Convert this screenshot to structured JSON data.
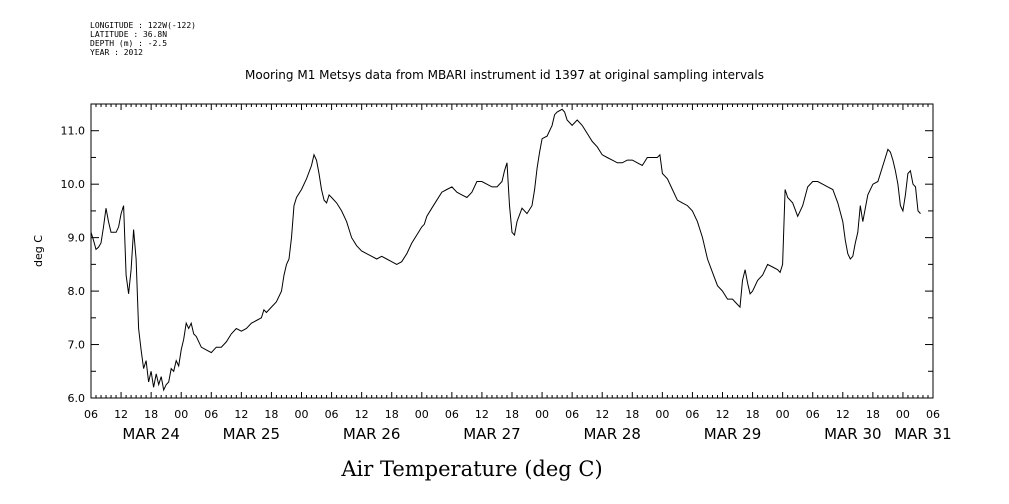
{
  "header": {
    "longitude": "LONGITUDE : 122W(-122)",
    "latitude": "LATITUDE : 36.8N",
    "depth": "DEPTH (m) : -2.5",
    "year": "YEAR : 2012"
  },
  "chart_data": {
    "type": "line",
    "title": "Mooring M1 Metsys data from MBARI instrument id 1397 at original sampling intervals",
    "xlabel": "Air Temperature (deg C)",
    "ylabel": "deg C",
    "ylim": [
      6.0,
      11.5
    ],
    "xlim_hours": [
      0,
      168
    ],
    "y_ticks": [
      "6.0",
      "7.0",
      "8.0",
      "9.0",
      "10.0",
      "11.0"
    ],
    "x_hour_ticks": [
      "06",
      "12",
      "18",
      "00",
      "06",
      "12",
      "18",
      "00",
      "06",
      "12",
      "18",
      "00",
      "06",
      "12",
      "18",
      "00",
      "06",
      "12",
      "18",
      "00",
      "06",
      "12",
      "18",
      "00",
      "06",
      "12",
      "18",
      "00",
      "06"
    ],
    "x_day_labels": [
      {
        "label": "MAR 24",
        "hour": 12
      },
      {
        "label": "MAR 25",
        "hour": 32
      },
      {
        "label": "MAR 26",
        "hour": 56
      },
      {
        "label": "MAR 27",
        "hour": 80
      },
      {
        "label": "MAR 28",
        "hour": 104
      },
      {
        "label": "MAR 29",
        "hour": 128
      },
      {
        "label": "MAR 30",
        "hour": 152
      },
      {
        "label": "MAR 31",
        "hour": 166
      }
    ],
    "series": [
      {
        "points": [
          [
            0,
            9.1
          ],
          [
            0.5,
            8.95
          ],
          [
            1,
            8.78
          ],
          [
            1.5,
            8.82
          ],
          [
            2,
            8.9
          ],
          [
            2.5,
            9.2
          ],
          [
            3,
            9.55
          ],
          [
            3.5,
            9.3
          ],
          [
            4,
            9.1
          ],
          [
            5,
            9.1
          ],
          [
            5.5,
            9.2
          ],
          [
            6,
            9.45
          ],
          [
            6.5,
            9.6
          ],
          [
            7,
            8.3
          ],
          [
            7.5,
            7.95
          ],
          [
            8,
            8.4
          ],
          [
            8.5,
            9.15
          ],
          [
            9,
            8.6
          ],
          [
            9.5,
            7.3
          ],
          [
            10,
            6.9
          ],
          [
            10.5,
            6.55
          ],
          [
            11,
            6.7
          ],
          [
            11.5,
            6.3
          ],
          [
            12,
            6.5
          ],
          [
            12.5,
            6.2
          ],
          [
            13,
            6.45
          ],
          [
            13.5,
            6.25
          ],
          [
            14,
            6.4
          ],
          [
            14.5,
            6.15
          ],
          [
            15,
            6.25
          ],
          [
            15.5,
            6.3
          ],
          [
            16,
            6.55
          ],
          [
            16.5,
            6.5
          ],
          [
            17,
            6.7
          ],
          [
            17.5,
            6.6
          ],
          [
            18,
            6.9
          ],
          [
            18.5,
            7.1
          ],
          [
            19,
            7.4
          ],
          [
            19.5,
            7.3
          ],
          [
            20,
            7.4
          ],
          [
            20.5,
            7.2
          ],
          [
            21,
            7.15
          ],
          [
            22,
            6.95
          ],
          [
            23,
            6.9
          ],
          [
            24,
            6.85
          ],
          [
            25,
            6.95
          ],
          [
            26,
            6.95
          ],
          [
            27,
            7.05
          ],
          [
            28,
            7.2
          ],
          [
            29,
            7.3
          ],
          [
            30,
            7.25
          ],
          [
            31,
            7.3
          ],
          [
            32,
            7.4
          ],
          [
            33,
            7.45
          ],
          [
            34,
            7.5
          ],
          [
            34.5,
            7.65
          ],
          [
            35,
            7.6
          ],
          [
            36,
            7.7
          ],
          [
            37,
            7.8
          ],
          [
            38,
            8.0
          ],
          [
            38.5,
            8.3
          ],
          [
            39,
            8.5
          ],
          [
            39.5,
            8.6
          ],
          [
            40,
            9.0
          ],
          [
            40.5,
            9.6
          ],
          [
            41,
            9.75
          ],
          [
            42,
            9.9
          ],
          [
            43,
            10.1
          ],
          [
            44,
            10.35
          ],
          [
            44.5,
            10.55
          ],
          [
            45,
            10.45
          ],
          [
            45.5,
            10.2
          ],
          [
            46,
            9.9
          ],
          [
            46.5,
            9.7
          ],
          [
            47,
            9.65
          ],
          [
            47.5,
            9.8
          ],
          [
            48,
            9.75
          ],
          [
            49,
            9.65
          ],
          [
            50,
            9.5
          ],
          [
            51,
            9.3
          ],
          [
            52,
            9.0
          ],
          [
            53,
            8.85
          ],
          [
            54,
            8.75
          ],
          [
            55,
            8.7
          ],
          [
            56,
            8.65
          ],
          [
            57,
            8.6
          ],
          [
            58,
            8.65
          ],
          [
            59,
            8.6
          ],
          [
            60,
            8.55
          ],
          [
            61,
            8.5
          ],
          [
            62,
            8.55
          ],
          [
            63,
            8.7
          ],
          [
            64,
            8.9
          ],
          [
            65,
            9.05
          ],
          [
            66,
            9.2
          ],
          [
            66.5,
            9.25
          ],
          [
            67,
            9.4
          ],
          [
            68,
            9.55
          ],
          [
            69,
            9.7
          ],
          [
            70,
            9.85
          ],
          [
            71,
            9.9
          ],
          [
            72,
            9.95
          ],
          [
            73,
            9.85
          ],
          [
            74,
            9.8
          ],
          [
            75,
            9.75
          ],
          [
            76,
            9.85
          ],
          [
            77,
            10.05
          ],
          [
            78,
            10.05
          ],
          [
            79,
            10.0
          ],
          [
            80,
            9.95
          ],
          [
            81,
            9.95
          ],
          [
            82,
            10.05
          ],
          [
            82.5,
            10.25
          ],
          [
            83,
            10.4
          ],
          [
            83.5,
            9.6
          ],
          [
            84,
            9.1
          ],
          [
            84.5,
            9.05
          ],
          [
            85,
            9.3
          ],
          [
            86,
            9.55
          ],
          [
            87,
            9.45
          ],
          [
            88,
            9.6
          ],
          [
            88.5,
            9.9
          ],
          [
            89,
            10.3
          ],
          [
            89.5,
            10.6
          ],
          [
            90,
            10.85
          ],
          [
            91,
            10.9
          ],
          [
            92,
            11.1
          ],
          [
            92.5,
            11.3
          ],
          [
            93,
            11.35
          ],
          [
            94,
            11.4
          ],
          [
            94.5,
            11.35
          ],
          [
            95,
            11.2
          ],
          [
            96,
            11.1
          ],
          [
            97,
            11.2
          ],
          [
            98,
            11.1
          ],
          [
            99,
            10.95
          ],
          [
            100,
            10.8
          ],
          [
            101,
            10.7
          ],
          [
            102,
            10.55
          ],
          [
            103,
            10.5
          ],
          [
            104,
            10.45
          ],
          [
            105,
            10.4
          ],
          [
            106,
            10.4
          ],
          [
            107,
            10.45
          ],
          [
            108,
            10.45
          ],
          [
            109,
            10.4
          ],
          [
            110,
            10.35
          ],
          [
            111,
            10.5
          ],
          [
            112,
            10.5
          ],
          [
            113,
            10.5
          ],
          [
            113.5,
            10.55
          ],
          [
            114,
            10.2
          ],
          [
            115,
            10.1
          ],
          [
            116,
            9.9
          ],
          [
            117,
            9.7
          ],
          [
            118,
            9.65
          ],
          [
            119,
            9.6
          ],
          [
            120,
            9.5
          ],
          [
            121,
            9.3
          ],
          [
            122,
            9.0
          ],
          [
            123,
            8.6
          ],
          [
            124,
            8.35
          ],
          [
            125,
            8.1
          ],
          [
            126,
            8.0
          ],
          [
            127,
            7.85
          ],
          [
            128,
            7.85
          ],
          [
            129,
            7.75
          ],
          [
            129.5,
            7.7
          ],
          [
            130,
            8.2
          ],
          [
            130.5,
            8.4
          ],
          [
            131,
            8.15
          ],
          [
            131.5,
            7.95
          ],
          [
            132,
            8.0
          ],
          [
            133,
            8.2
          ],
          [
            134,
            8.3
          ],
          [
            135,
            8.5
          ],
          [
            136,
            8.45
          ],
          [
            137,
            8.4
          ],
          [
            137.5,
            8.35
          ],
          [
            138,
            8.5
          ],
          [
            138.5,
            9.9
          ],
          [
            139,
            9.75
          ],
          [
            140,
            9.65
          ],
          [
            141,
            9.4
          ],
          [
            142,
            9.6
          ],
          [
            143,
            9.95
          ],
          [
            144,
            10.05
          ],
          [
            145,
            10.05
          ],
          [
            146,
            10.0
          ],
          [
            147,
            9.95
          ],
          [
            148,
            9.9
          ],
          [
            149,
            9.65
          ],
          [
            150,
            9.3
          ],
          [
            150.5,
            8.95
          ],
          [
            151,
            8.7
          ],
          [
            151.5,
            8.6
          ],
          [
            152,
            8.65
          ],
          [
            152.5,
            8.9
          ],
          [
            153,
            9.1
          ],
          [
            153.5,
            9.6
          ],
          [
            154,
            9.3
          ],
          [
            155,
            9.8
          ],
          [
            156,
            10.0
          ],
          [
            157,
            10.05
          ],
          [
            158,
            10.35
          ],
          [
            158.5,
            10.5
          ],
          [
            159,
            10.65
          ],
          [
            159.5,
            10.6
          ],
          [
            160,
            10.45
          ],
          [
            160.5,
            10.25
          ],
          [
            161,
            10.0
          ],
          [
            161.5,
            9.6
          ],
          [
            162,
            9.5
          ],
          [
            162.5,
            9.8
          ],
          [
            163,
            10.2
          ],
          [
            163.5,
            10.25
          ],
          [
            164,
            10.0
          ],
          [
            164.5,
            9.95
          ],
          [
            165,
            9.5
          ],
          [
            165.5,
            9.45
          ]
        ]
      }
    ],
    "grid": false,
    "legend": "none"
  }
}
